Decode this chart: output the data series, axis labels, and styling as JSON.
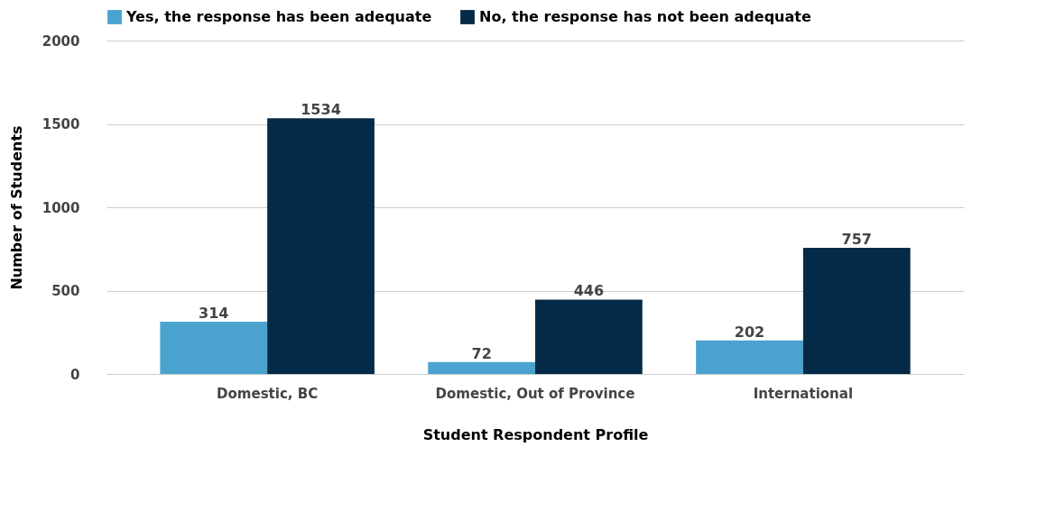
{
  "chart_data": {
    "type": "bar",
    "xlabel": "Student Respondent Profile",
    "ylabel": "Number of Students",
    "categories": [
      "Domestic, BC",
      "Domestic, Out of Province",
      "International"
    ],
    "series": [
      {
        "name": "Yes, the response has been adequate",
        "color": "#4aa3cf",
        "values": [
          314,
          72,
          202
        ]
      },
      {
        "name": "No, the response has not been adequate",
        "color": "#052a47",
        "values": [
          1534,
          446,
          757
        ]
      }
    ],
    "ylim": [
      0,
      2000
    ],
    "yticks": [
      0,
      500,
      1000,
      1500,
      2000
    ],
    "grid": "y",
    "legend": "top",
    "data_labels": true
  }
}
